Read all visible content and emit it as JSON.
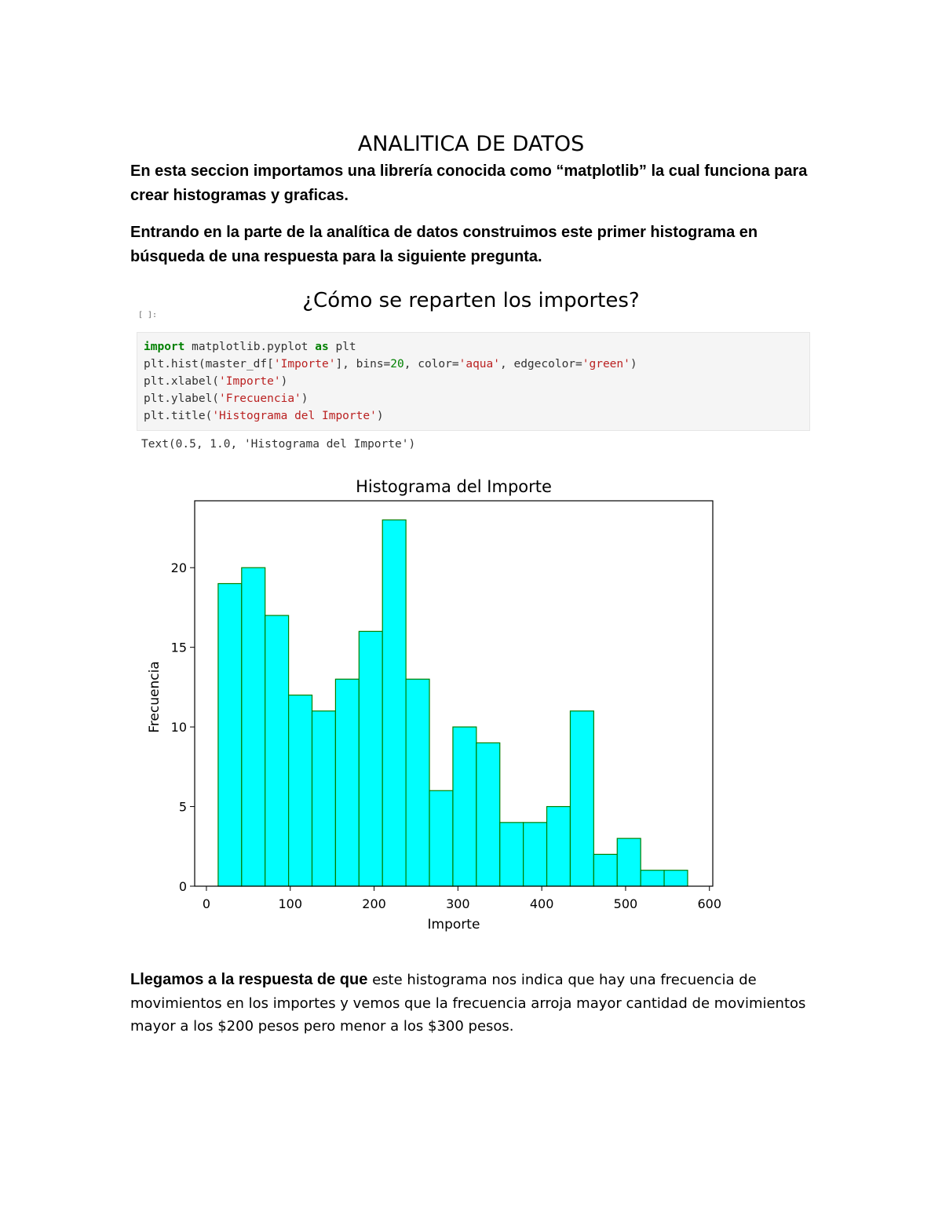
{
  "document": {
    "title": "ANALITICA DE DATOS",
    "intro": "En esta seccion importamos una librería conocida como “matplotlib” la cual funciona para crear histogramas y graficas.",
    "paragraph2": "Entrando en la parte de la analítica de datos construimos este primer histograma en búsqueda de una respuesta para la siguiente pregunta.",
    "question": "¿Cómo se reparten los importes?",
    "prompt_fragment": "[ ]:",
    "answer_lead": "Llegamos a la respuesta de que",
    "answer_body": " este histograma nos indica que hay una frecuencia de movimientos en los importes y vemos que la frecuencia arroja mayor cantidad de movimientos mayor a los $200 pesos pero menor a los $300 pesos."
  },
  "code": {
    "l1_kw": "import",
    "l1_mod": " matplotlib.pyplot ",
    "l1_as": "as",
    "l1_alias": " plt",
    "l2_a": "plt.hist(master_df[",
    "l2_s1": "'Importe'",
    "l2_b": "], bins=",
    "l2_n": "20",
    "l2_c": ", color=",
    "l2_s2": "'aqua'",
    "l2_d": ", edgecolor=",
    "l2_s3": "'green'",
    "l2_e": ")",
    "l3_a": "plt.xlabel(",
    "l3_s": "'Importe'",
    "l3_e": ")",
    "l4_a": "plt.ylabel(",
    "l4_s": "'Frecuencia'",
    "l4_e": ")",
    "l5_a": "plt.title(",
    "l5_s": "'Histograma del Importe'",
    "l5_e": ")",
    "output": "Text(0.5, 1.0, 'Histograma del Importe')"
  },
  "chart_data": {
    "type": "bar",
    "title": "Histograma del Importe",
    "xlabel": "Importe",
    "ylabel": "Frecuencia",
    "bin_edges": [
      14,
      42,
      70,
      98,
      126,
      154,
      182,
      210,
      238,
      266,
      294,
      322,
      350,
      378,
      406,
      434,
      462,
      490,
      518,
      546,
      574
    ],
    "values": [
      19,
      20,
      17,
      12,
      11,
      13,
      16,
      23,
      13,
      6,
      10,
      9,
      4,
      4,
      5,
      11,
      2,
      3,
      1,
      1
    ],
    "xlim": [
      -14,
      604
    ],
    "ylim": [
      0,
      24.2
    ],
    "xticks": [
      0,
      100,
      200,
      300,
      400,
      500,
      600
    ],
    "yticks": [
      0,
      5,
      10,
      15,
      20
    ],
    "bar_color": "#00ffff",
    "edge_color": "#008000",
    "grid": false
  }
}
